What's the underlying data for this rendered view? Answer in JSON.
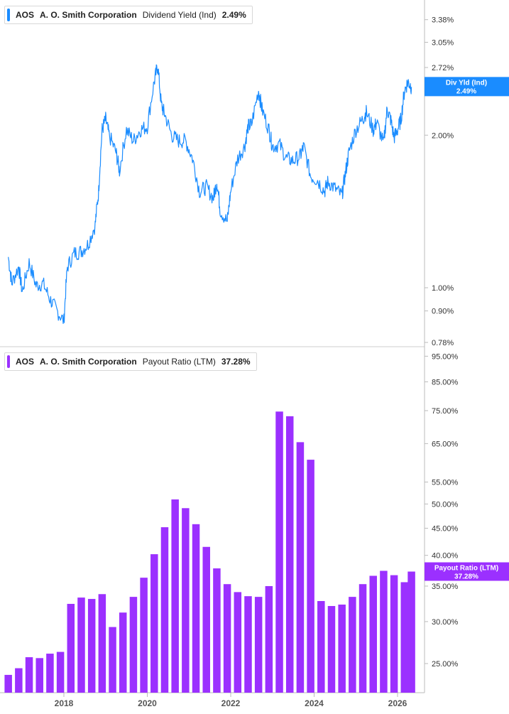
{
  "colors": {
    "yield_line": "#1a8cff",
    "bar": "#9b30ff",
    "axis": "#bbbbbb",
    "text": "#333333"
  },
  "chart_data": [
    {
      "type": "line",
      "title": "AOS  A. O. Smith Corporation  Dividend Yield (Ind)  2.49%",
      "legend": {
        "ticker": "AOS",
        "company": "A. O. Smith Corporation",
        "metric": "Dividend Yield (Ind)",
        "value": "2.49%"
      },
      "scale": "log",
      "ylim": [
        0.0078,
        0.04
      ],
      "yticks": [
        {
          "v": 0.0338,
          "label": "3.38%"
        },
        {
          "v": 0.0305,
          "label": "3.05%"
        },
        {
          "v": 0.0272,
          "label": "2.72%"
        },
        {
          "v": 0.02,
          "label": "2.00%"
        },
        {
          "v": 0.01,
          "label": "1.00%"
        },
        {
          "v": 0.009,
          "label": "0.90%"
        },
        {
          "v": 0.0078,
          "label": "0.78%"
        }
      ],
      "end_tag": {
        "label": "Div Yld (Ind)",
        "value": "2.49%",
        "v": 0.0249
      },
      "series": [
        {
          "points": [
            [
              "2016-09",
              1.15
            ],
            [
              "2016-10",
              1.02
            ],
            [
              "2016-12",
              1.1
            ],
            [
              "2017-01",
              0.98
            ],
            [
              "2017-03",
              1.12
            ],
            [
              "2017-05",
              1.01
            ],
            [
              "2017-07",
              1.02
            ],
            [
              "2017-09",
              0.95
            ],
            [
              "2017-11",
              0.9
            ],
            [
              "2018-01",
              0.86
            ],
            [
              "2018-02",
              1.1
            ],
            [
              "2018-04",
              1.17
            ],
            [
              "2018-06",
              1.18
            ],
            [
              "2018-08",
              1.22
            ],
            [
              "2018-10",
              1.33
            ],
            [
              "2018-11",
              1.55
            ],
            [
              "2018-12",
              2.05
            ],
            [
              "2019-01",
              2.15
            ],
            [
              "2019-02",
              2.0
            ],
            [
              "2019-04",
              1.85
            ],
            [
              "2019-05",
              1.7
            ],
            [
              "2019-07",
              2.05
            ],
            [
              "2019-09",
              1.95
            ],
            [
              "2019-11",
              2.05
            ],
            [
              "2020-01",
              2.08
            ],
            [
              "2020-03",
              2.55
            ],
            [
              "2020-04",
              2.75
            ],
            [
              "2020-05",
              2.3
            ],
            [
              "2020-06",
              2.2
            ],
            [
              "2020-08",
              2.0
            ],
            [
              "2020-10",
              1.95
            ],
            [
              "2020-12",
              1.95
            ],
            [
              "2021-02",
              1.8
            ],
            [
              "2021-04",
              1.55
            ],
            [
              "2021-06",
              1.58
            ],
            [
              "2021-08",
              1.5
            ],
            [
              "2021-09",
              1.62
            ],
            [
              "2021-10",
              1.42
            ],
            [
              "2021-12",
              1.35
            ],
            [
              "2022-01",
              1.55
            ],
            [
              "2022-03",
              1.8
            ],
            [
              "2022-05",
              1.9
            ],
            [
              "2022-06",
              2.08
            ],
            [
              "2022-07",
              2.1
            ],
            [
              "2022-09",
              2.45
            ],
            [
              "2022-10",
              2.25
            ],
            [
              "2022-12",
              2.05
            ],
            [
              "2023-01",
              1.9
            ],
            [
              "2023-03",
              1.92
            ],
            [
              "2023-05",
              1.8
            ],
            [
              "2023-07",
              1.78
            ],
            [
              "2023-09",
              1.82
            ],
            [
              "2023-10",
              1.9
            ],
            [
              "2023-12",
              1.66
            ],
            [
              "2024-02",
              1.63
            ],
            [
              "2024-04",
              1.55
            ],
            [
              "2024-05",
              1.62
            ],
            [
              "2024-07",
              1.57
            ],
            [
              "2024-09",
              1.52
            ],
            [
              "2024-10",
              1.68
            ],
            [
              "2024-11",
              1.85
            ],
            [
              "2025-01",
              2.05
            ],
            [
              "2025-03",
              2.15
            ],
            [
              "2025-04",
              2.22
            ],
            [
              "2025-06",
              2.05
            ],
            [
              "2025-07",
              2.12
            ],
            [
              "2025-09",
              1.92
            ],
            [
              "2025-10",
              2.25
            ],
            [
              "2025-11",
              2.15
            ],
            [
              "2025-12",
              1.98
            ],
            [
              "2026-01",
              2.05
            ],
            [
              "2026-02",
              2.15
            ],
            [
              "2026-03",
              2.45
            ],
            [
              "2026-04",
              2.55
            ],
            [
              "2026-05",
              2.49
            ]
          ]
        }
      ]
    },
    {
      "type": "bar",
      "title": "AOS  A. O. Smith Corporation  Payout Ratio (LTM)  37.28%",
      "legend": {
        "ticker": "AOS",
        "company": "A. O. Smith Corporation",
        "metric": "Payout Ratio (LTM)",
        "value": "37.28%"
      },
      "scale": "log",
      "ylim": [
        0.22,
        0.95
      ],
      "yticks": [
        {
          "v": 0.95,
          "label": "95.00%"
        },
        {
          "v": 0.85,
          "label": "85.00%"
        },
        {
          "v": 0.75,
          "label": "75.00%"
        },
        {
          "v": 0.65,
          "label": "65.00%"
        },
        {
          "v": 0.55,
          "label": "55.00%"
        },
        {
          "v": 0.5,
          "label": "50.00%"
        },
        {
          "v": 0.45,
          "label": "45.00%"
        },
        {
          "v": 0.4,
          "label": "40.00%"
        },
        {
          "v": 0.35,
          "label": "35.00%"
        },
        {
          "v": 0.3,
          "label": "30.00%"
        },
        {
          "v": 0.25,
          "label": "25.00%"
        }
      ],
      "end_tag": {
        "label": "Payout Ratio (LTM)",
        "value": "37.28%",
        "v": 0.3728
      },
      "bars": [
        [
          "2016-09",
          23.8
        ],
        [
          "2016-12",
          24.5
        ],
        [
          "2017-03",
          25.7
        ],
        [
          "2017-06",
          25.6
        ],
        [
          "2017-09",
          26.1
        ],
        [
          "2017-12",
          26.3
        ],
        [
          "2018-03",
          32.4
        ],
        [
          "2018-06",
          33.3
        ],
        [
          "2018-09",
          33.1
        ],
        [
          "2018-12",
          33.8
        ],
        [
          "2019-03",
          29.3
        ],
        [
          "2019-06",
          31.2
        ],
        [
          "2019-09",
          33.4
        ],
        [
          "2019-12",
          36.3
        ],
        [
          "2020-03",
          40.2
        ],
        [
          "2020-06",
          45.2
        ],
        [
          "2020-09",
          51.0
        ],
        [
          "2020-12",
          49.1
        ],
        [
          "2021-03",
          45.8
        ],
        [
          "2021-06",
          41.5
        ],
        [
          "2021-09",
          37.8
        ],
        [
          "2021-12",
          35.3
        ],
        [
          "2022-03",
          34.1
        ],
        [
          "2022-06",
          33.5
        ],
        [
          "2022-09",
          33.4
        ],
        [
          "2022-12",
          35.0
        ],
        [
          "2023-03",
          74.7
        ],
        [
          "2023-06",
          73.2
        ],
        [
          "2023-09",
          65.4
        ],
        [
          "2023-12",
          60.6
        ],
        [
          "2024-03",
          32.8
        ],
        [
          "2024-06",
          32.1
        ],
        [
          "2024-09",
          32.3
        ],
        [
          "2024-12",
          33.4
        ],
        [
          "2025-03",
          35.3
        ],
        [
          "2025-06",
          36.6
        ],
        [
          "2025-09",
          37.4
        ],
        [
          "2025-12",
          36.7
        ],
        [
          "2026-03",
          35.6
        ],
        [
          "2026-05",
          37.28
        ]
      ]
    }
  ],
  "x_axis": {
    "ticks": [
      "2018",
      "2020",
      "2022",
      "2024",
      "2026"
    ]
  }
}
